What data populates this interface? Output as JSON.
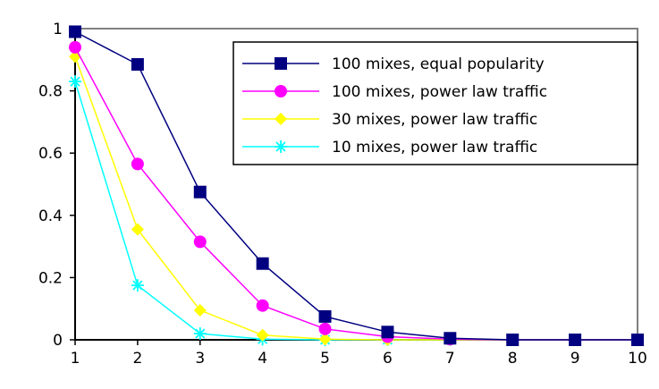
{
  "chart_data": {
    "type": "line",
    "title": "",
    "xlabel": "",
    "ylabel": "",
    "x": [
      1,
      2,
      3,
      4,
      5,
      6,
      7,
      8,
      9,
      10
    ],
    "xlim": [
      1,
      10
    ],
    "ylim": [
      0,
      1
    ],
    "x_ticks": [
      "1",
      "2",
      "3",
      "4",
      "5",
      "6",
      "7",
      "8",
      "9",
      "10"
    ],
    "y_ticks": [
      "0",
      "0.2",
      "0.4",
      "0.6",
      "0.8",
      "1"
    ],
    "grid": false,
    "legend_position": "top-right",
    "series": [
      {
        "name": "100 mixes, equal popularity",
        "color": "#000080",
        "marker": "square",
        "values": [
          0.99,
          0.885,
          0.475,
          0.245,
          0.075,
          0.025,
          0.005,
          0.0,
          0.0,
          0.0
        ]
      },
      {
        "name": "100 mixes, power law traffic",
        "color": "#ff00ff",
        "marker": "circle",
        "values": [
          0.94,
          0.565,
          0.315,
          0.11,
          0.035,
          0.01,
          0.002,
          0.0,
          0.0,
          0.0
        ]
      },
      {
        "name": "30 mixes, power law traffic",
        "color": "#ffff00",
        "marker": "diamond",
        "values": [
          0.91,
          0.355,
          0.095,
          0.015,
          0.002,
          0.0,
          0.0,
          0.0,
          0.0,
          0.0
        ]
      },
      {
        "name": "10 mixes, power law traffic",
        "color": "#00ffff",
        "marker": "star",
        "values": [
          0.83,
          0.175,
          0.02,
          0.002,
          0.0,
          0.0,
          0.0,
          0.0,
          0.0,
          0.0
        ]
      }
    ]
  }
}
